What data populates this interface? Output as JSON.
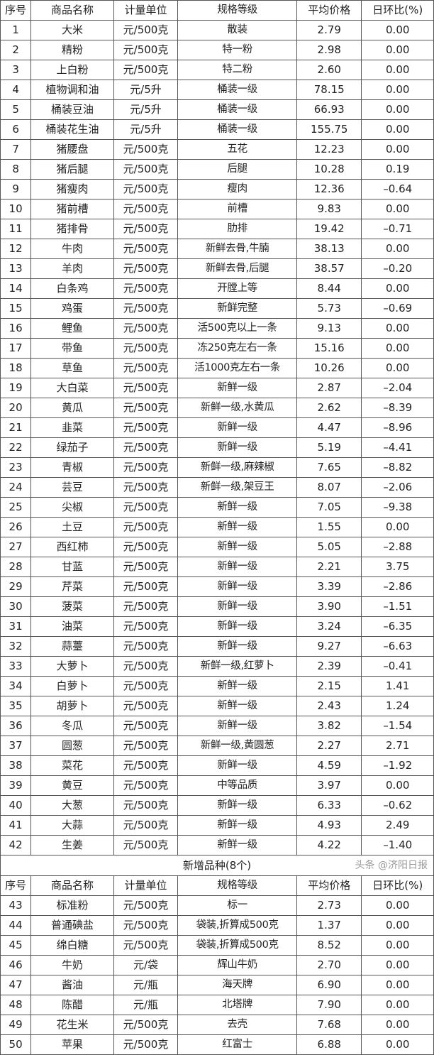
{
  "headers": [
    "序号",
    "商品名称",
    "计量单位",
    "规格等级",
    "平均价格",
    "日环比(%)"
  ],
  "rows": [
    [
      "1",
      "大米",
      "元/500克",
      "散装",
      "2.79",
      "0.00"
    ],
    [
      "2",
      "精粉",
      "元/500克",
      "特一粉",
      "2.98",
      "0.00"
    ],
    [
      "3",
      "上白粉",
      "元/500克",
      "特二粉",
      "2.60",
      "0.00"
    ],
    [
      "4",
      "植物调和油",
      "元/5升",
      "桶装一级",
      "78.15",
      "0.00"
    ],
    [
      "5",
      "桶装豆油",
      "元/5升",
      "桶装一级",
      "66.93",
      "0.00"
    ],
    [
      "6",
      "桶装花生油",
      "元/5升",
      "桶装一级",
      "155.75",
      "0.00"
    ],
    [
      "7",
      "猪腰盘",
      "元/500克",
      "五花",
      "12.23",
      "0.00"
    ],
    [
      "8",
      "猪后腿",
      "元/500克",
      "后腿",
      "10.28",
      "0.19"
    ],
    [
      "9",
      "猪瘦肉",
      "元/500克",
      "瘦肉",
      "12.36",
      "–0.64"
    ],
    [
      "10",
      "猪前槽",
      "元/500克",
      "前槽",
      "9.83",
      "0.00"
    ],
    [
      "11",
      "猪排骨",
      "元/500克",
      "肋排",
      "19.42",
      "–0.71"
    ],
    [
      "12",
      "牛肉",
      "元/500克",
      "新鲜去骨,牛腩",
      "38.13",
      "0.00"
    ],
    [
      "13",
      "羊肉",
      "元/500克",
      "新鲜去骨,后腿",
      "38.57",
      "–0.20"
    ],
    [
      "14",
      "白条鸡",
      "元/500克",
      "开膛上等",
      "8.44",
      "0.00"
    ],
    [
      "15",
      "鸡蛋",
      "元/500克",
      "新鲜完整",
      "5.73",
      "–0.69"
    ],
    [
      "16",
      "鲤鱼",
      "元/500克",
      "活500克以上一条",
      "9.13",
      "0.00"
    ],
    [
      "17",
      "带鱼",
      "元/500克",
      "冻250克左右一条",
      "15.16",
      "0.00"
    ],
    [
      "18",
      "草鱼",
      "元/500克",
      "活1000克左右一条",
      "10.26",
      "0.00"
    ],
    [
      "19",
      "大白菜",
      "元/500克",
      "新鲜一级",
      "2.87",
      "–2.04"
    ],
    [
      "20",
      "黄瓜",
      "元/500克",
      "新鲜一级,水黄瓜",
      "2.62",
      "–8.39"
    ],
    [
      "21",
      "韭菜",
      "元/500克",
      "新鲜一级",
      "4.47",
      "–8.96"
    ],
    [
      "22",
      "绿茄子",
      "元/500克",
      "新鲜一级",
      "5.19",
      "–4.41"
    ],
    [
      "23",
      "青椒",
      "元/500克",
      "新鲜一级,麻辣椒",
      "7.65",
      "–8.82"
    ],
    [
      "24",
      "芸豆",
      "元/500克",
      "新鲜一级,架豆王",
      "8.07",
      "–2.06"
    ],
    [
      "25",
      "尖椒",
      "元/500克",
      "新鲜一级",
      "7.05",
      "–9.38"
    ],
    [
      "26",
      "土豆",
      "元/500克",
      "新鲜一级",
      "1.55",
      "0.00"
    ],
    [
      "27",
      "西红柿",
      "元/500克",
      "新鲜一级",
      "5.05",
      "–2.88"
    ],
    [
      "28",
      "甘蓝",
      "元/500克",
      "新鲜一级",
      "2.21",
      "3.75"
    ],
    [
      "29",
      "芹菜",
      "元/500克",
      "新鲜一级",
      "3.39",
      "–2.86"
    ],
    [
      "30",
      "菠菜",
      "元/500克",
      "新鲜一级",
      "3.90",
      "–1.51"
    ],
    [
      "31",
      "油菜",
      "元/500克",
      "新鲜一级",
      "3.24",
      "–6.35"
    ],
    [
      "32",
      "蒜薹",
      "元/500克",
      "新鲜一级",
      "9.27",
      "–6.63"
    ],
    [
      "33",
      "大萝卜",
      "元/500克",
      "新鲜一级,红萝卜",
      "2.39",
      "–0.41"
    ],
    [
      "34",
      "白萝卜",
      "元/500克",
      "新鲜一级",
      "2.15",
      "1.41"
    ],
    [
      "35",
      "胡萝卜",
      "元/500克",
      "新鲜一级",
      "2.43",
      "1.24"
    ],
    [
      "36",
      "冬瓜",
      "元/500克",
      "新鲜一级",
      "3.82",
      "–1.54"
    ],
    [
      "37",
      "圆葱",
      "元/500克",
      "新鲜一级,黄圆葱",
      "2.27",
      "2.71"
    ],
    [
      "38",
      "菜花",
      "元/500克",
      "新鲜一级",
      "4.59",
      "–1.92"
    ],
    [
      "39",
      "黄豆",
      "元/500克",
      "中等品质",
      "3.97",
      "0.00"
    ],
    [
      "40",
      "大葱",
      "元/500克",
      "新鲜一级",
      "6.33",
      "–0.62"
    ],
    [
      "41",
      "大蒜",
      "元/500克",
      "新鲜一级",
      "4.93",
      "2.49"
    ],
    [
      "42",
      "生姜",
      "元/500克",
      "新鲜一级",
      "4.22",
      "–1.40"
    ]
  ],
  "new_section": {
    "title": "新增品种(8个)",
    "headers": [
      "序号",
      "商品名称",
      "计量单位",
      "规格等级",
      "平均价格",
      "日环比(%)"
    ],
    "rows": [
      [
        "43",
        "标准粉",
        "元/500克",
        "标一",
        "2.73",
        "0.00"
      ],
      [
        "44",
        "普通碘盐",
        "元/500克",
        "袋装,折算成500克",
        "1.37",
        "0.00"
      ],
      [
        "45",
        "绵白糖",
        "元/500克",
        "袋装,折算成500克",
        "8.52",
        "0.00"
      ],
      [
        "46",
        "牛奶",
        "元/袋",
        "辉山牛奶",
        "2.70",
        "0.00"
      ],
      [
        "47",
        "酱油",
        "元/瓶",
        "海天牌",
        "6.90",
        "0.00"
      ],
      [
        "48",
        "陈醋",
        "元/瓶",
        "北塔牌",
        "7.90",
        "0.00"
      ],
      [
        "49",
        "花生米",
        "元/500克",
        "去壳",
        "7.68",
        "0.00"
      ],
      [
        "50",
        "苹果",
        "元/500克",
        "红富士",
        "6.88",
        "0.00"
      ]
    ]
  },
  "watermark": "头条 @济阳日报"
}
